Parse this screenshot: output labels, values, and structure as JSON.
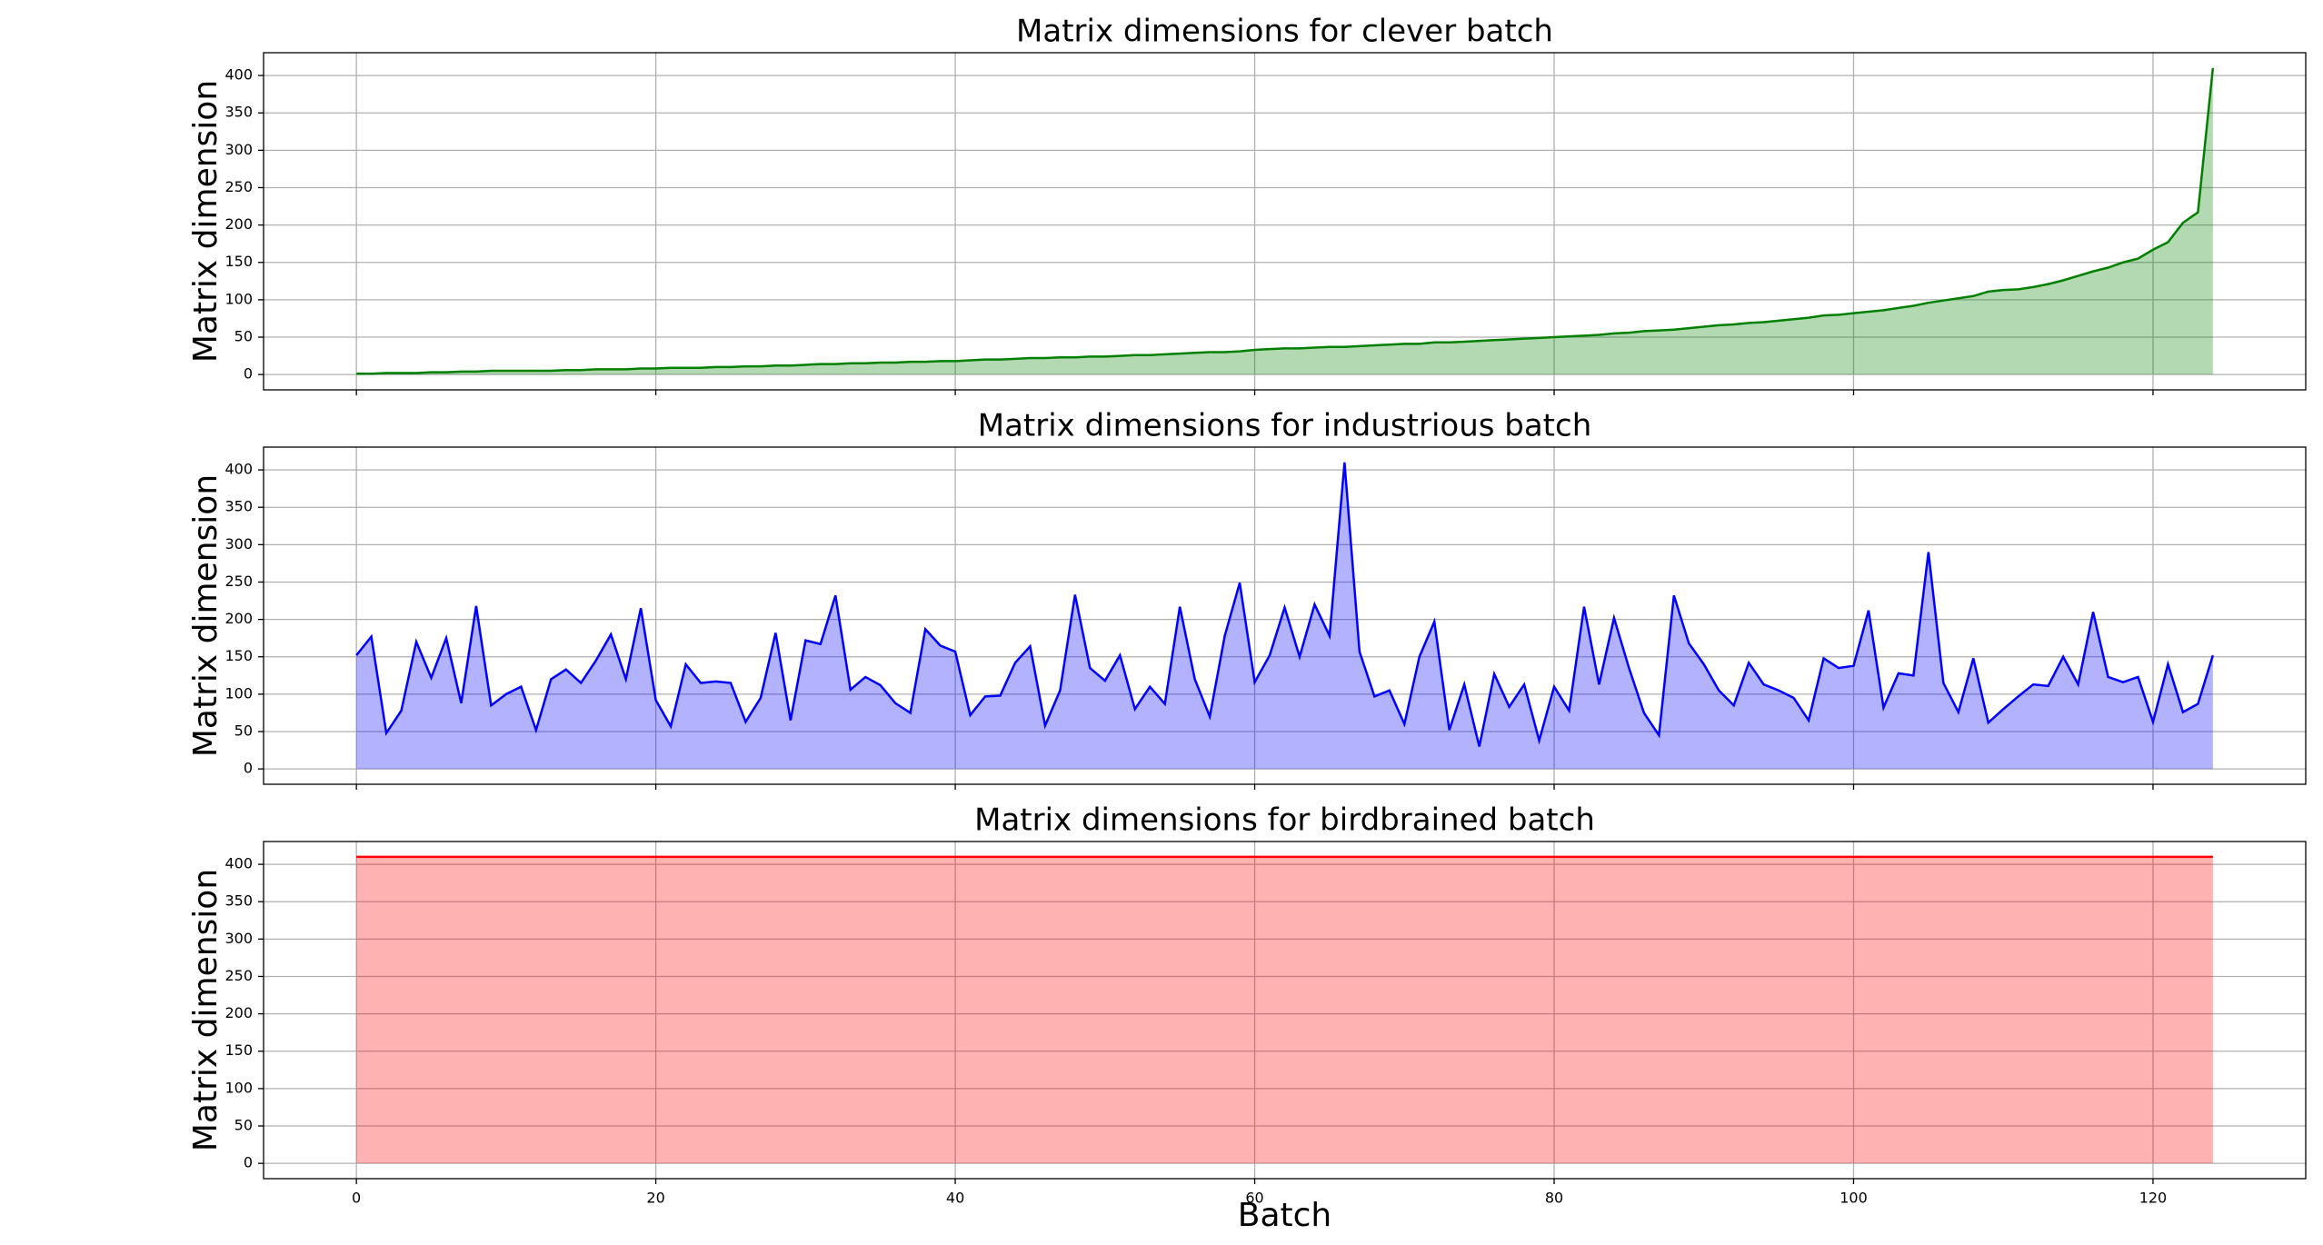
{
  "chart_data": [
    {
      "type": "area",
      "title": "Matrix dimensions for clever batch",
      "ylabel": "Matrix dimension",
      "color": "#008000",
      "alpha": 0.3,
      "grid": true,
      "xlim": [
        -6.2,
        130.2
      ],
      "xticks": [
        0,
        20,
        40,
        60,
        80,
        100,
        120
      ],
      "ylim": [
        -20.5,
        430.5
      ],
      "yticks": [
        0,
        50,
        100,
        150,
        200,
        250,
        300,
        350,
        400
      ],
      "x": [
        0,
        1,
        2,
        3,
        4,
        5,
        6,
        7,
        8,
        9,
        10,
        11,
        12,
        13,
        14,
        15,
        16,
        17,
        18,
        19,
        20,
        21,
        22,
        23,
        24,
        25,
        26,
        27,
        28,
        29,
        30,
        31,
        32,
        33,
        34,
        35,
        36,
        37,
        38,
        39,
        40,
        41,
        42,
        43,
        44,
        45,
        46,
        47,
        48,
        49,
        50,
        51,
        52,
        53,
        54,
        55,
        56,
        57,
        58,
        59,
        60,
        61,
        62,
        63,
        64,
        65,
        66,
        67,
        68,
        69,
        70,
        71,
        72,
        73,
        74,
        75,
        76,
        77,
        78,
        79,
        80,
        81,
        82,
        83,
        84,
        85,
        86,
        87,
        88,
        89,
        90,
        91,
        92,
        93,
        94,
        95,
        96,
        97,
        98,
        99,
        100,
        101,
        102,
        103,
        104,
        105,
        106,
        107,
        108,
        109,
        110,
        111,
        112,
        113,
        114,
        115,
        116,
        117,
        118,
        119,
        120,
        121,
        122,
        123,
        124
      ],
      "values": [
        1,
        1,
        2,
        2,
        2,
        3,
        3,
        4,
        4,
        5,
        5,
        5,
        5,
        5,
        6,
        6,
        7,
        7,
        7,
        8,
        8,
        9,
        9,
        9,
        10,
        10,
        11,
        11,
        12,
        12,
        13,
        14,
        14,
        15,
        15,
        16,
        16,
        17,
        17,
        18,
        18,
        19,
        20,
        20,
        21,
        22,
        22,
        23,
        23,
        24,
        24,
        25,
        26,
        26,
        27,
        28,
        29,
        30,
        30,
        31,
        33,
        34,
        35,
        35,
        36,
        37,
        37,
        38,
        39,
        40,
        41,
        41,
        43,
        43,
        44,
        45,
        46,
        47,
        48,
        49,
        50,
        51,
        52,
        53,
        55,
        56,
        58,
        59,
        60,
        62,
        64,
        66,
        67,
        69,
        70,
        72,
        74,
        76,
        79,
        80,
        82,
        84,
        86,
        89,
        92,
        96,
        99,
        102,
        105,
        111,
        113,
        114,
        117,
        121,
        126,
        132,
        138,
        143,
        150,
        155,
        167,
        177,
        203,
        217,
        410
      ]
    },
    {
      "type": "area",
      "title": "Matrix dimensions for industrious batch",
      "ylabel": "Matrix dimension",
      "color": "#0000ff",
      "alpha": 0.3,
      "grid": true,
      "xlim": [
        -6.2,
        130.2
      ],
      "xticks": [
        0,
        20,
        40,
        60,
        80,
        100,
        120
      ],
      "ylim": [
        -20.5,
        430.5
      ],
      "yticks": [
        0,
        50,
        100,
        150,
        200,
        250,
        300,
        350,
        400
      ],
      "x": [
        0,
        1,
        2,
        3,
        4,
        5,
        6,
        7,
        8,
        9,
        10,
        11,
        12,
        13,
        14,
        15,
        16,
        17,
        18,
        19,
        20,
        21,
        22,
        23,
        24,
        25,
        26,
        27,
        28,
        29,
        30,
        31,
        32,
        33,
        34,
        35,
        36,
        37,
        38,
        39,
        40,
        41,
        42,
        43,
        44,
        45,
        46,
        47,
        48,
        49,
        50,
        51,
        52,
        53,
        54,
        55,
        56,
        57,
        58,
        59,
        60,
        61,
        62,
        63,
        64,
        65,
        66,
        67,
        68,
        69,
        70,
        71,
        72,
        73,
        74,
        75,
        76,
        77,
        78,
        79,
        80,
        81,
        82,
        83,
        84,
        85,
        86,
        87,
        88,
        89,
        90,
        91,
        92,
        93,
        94,
        95,
        96,
        97,
        98,
        99,
        100,
        101,
        102,
        103,
        104,
        105,
        106,
        107,
        108,
        109,
        110,
        111,
        112,
        113,
        114,
        115,
        116,
        117,
        118,
        119,
        120,
        121,
        122,
        123,
        124
      ],
      "values": [
        152,
        177,
        48,
        78,
        170,
        122,
        175,
        88,
        218,
        85,
        100,
        110,
        52,
        120,
        133,
        115,
        145,
        180,
        120,
        215,
        92,
        57,
        140,
        115,
        117,
        115,
        63,
        95,
        182,
        65,
        172,
        167,
        232,
        106,
        123,
        112,
        88,
        75,
        187,
        165,
        157,
        72,
        97,
        98,
        142,
        164,
        58,
        105,
        233,
        135,
        118,
        152,
        80,
        110,
        87,
        217,
        120,
        70,
        178,
        249,
        116,
        152,
        216,
        150,
        220,
        178,
        410,
        157,
        97,
        105,
        60,
        150,
        197,
        52,
        113,
        30,
        127,
        83,
        113,
        38,
        110,
        78,
        217,
        113,
        202,
        135,
        75,
        45,
        232,
        168,
        140,
        105,
        85,
        142,
        113,
        105,
        95,
        65,
        148,
        135,
        138,
        212,
        82,
        128,
        125,
        290,
        115,
        76,
        148,
        62,
        80,
        97,
        113,
        111,
        150,
        113,
        210,
        123,
        116,
        123,
        63,
        140,
        76,
        87,
        152
      ]
    },
    {
      "type": "area",
      "title": "Matrix dimensions for birdbrained batch",
      "ylabel": "Matrix dimension",
      "xlabel": "Batch",
      "color": "#ff0000",
      "alpha": 0.3,
      "grid": true,
      "xlim": [
        -6.2,
        130.2
      ],
      "xticks": [
        0,
        20,
        40,
        60,
        80,
        100,
        120
      ],
      "ylim": [
        -20.5,
        430.5
      ],
      "yticks": [
        0,
        50,
        100,
        150,
        200,
        250,
        300,
        350,
        400
      ],
      "x": [
        0,
        1,
        2,
        3,
        4,
        5,
        6,
        7,
        8,
        9,
        10,
        11,
        12,
        13,
        14,
        15,
        16,
        17,
        18,
        19,
        20,
        21,
        22,
        23,
        24,
        25,
        26,
        27,
        28,
        29,
        30,
        31,
        32,
        33,
        34,
        35,
        36,
        37,
        38,
        39,
        40,
        41,
        42,
        43,
        44,
        45,
        46,
        47,
        48,
        49,
        50,
        51,
        52,
        53,
        54,
        55,
        56,
        57,
        58,
        59,
        60,
        61,
        62,
        63,
        64,
        65,
        66,
        67,
        68,
        69,
        70,
        71,
        72,
        73,
        74,
        75,
        76,
        77,
        78,
        79,
        80,
        81,
        82,
        83,
        84,
        85,
        86,
        87,
        88,
        89,
        90,
        91,
        92,
        93,
        94,
        95,
        96,
        97,
        98,
        99,
        100,
        101,
        102,
        103,
        104,
        105,
        106,
        107,
        108,
        109,
        110,
        111,
        112,
        113,
        114,
        115,
        116,
        117,
        118,
        119,
        120,
        121,
        122,
        123,
        124
      ],
      "values": [
        410,
        410,
        410,
        410,
        410,
        410,
        410,
        410,
        410,
        410,
        410,
        410,
        410,
        410,
        410,
        410,
        410,
        410,
        410,
        410,
        410,
        410,
        410,
        410,
        410,
        410,
        410,
        410,
        410,
        410,
        410,
        410,
        410,
        410,
        410,
        410,
        410,
        410,
        410,
        410,
        410,
        410,
        410,
        410,
        410,
        410,
        410,
        410,
        410,
        410,
        410,
        410,
        410,
        410,
        410,
        410,
        410,
        410,
        410,
        410,
        410,
        410,
        410,
        410,
        410,
        410,
        410,
        410,
        410,
        410,
        410,
        410,
        410,
        410,
        410,
        410,
        410,
        410,
        410,
        410,
        410,
        410,
        410,
        410,
        410,
        410,
        410,
        410,
        410,
        410,
        410,
        410,
        410,
        410,
        410,
        410,
        410,
        410,
        410,
        410,
        410,
        410,
        410,
        410,
        410,
        410,
        410,
        410,
        410,
        410,
        410,
        410,
        410,
        410,
        410,
        410,
        410,
        410,
        410,
        410,
        410,
        410,
        410,
        410,
        410
      ]
    }
  ]
}
